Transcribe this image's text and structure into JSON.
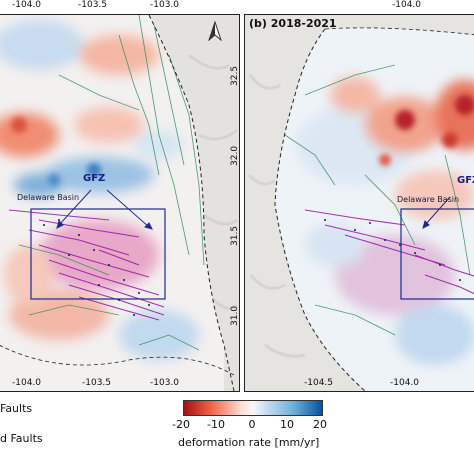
{
  "panel_a": {
    "top_ticks": [
      "-104.0",
      "-103.5",
      "-103.0"
    ],
    "bottom_ticks": [
      "-104.0",
      "-103.5",
      "-103.0"
    ],
    "lat_ticks": [
      "32.5",
      "32.0",
      "31.5",
      "31.0"
    ],
    "gfz_label": "GFZ",
    "basin_label": "Delaware Basin"
  },
  "panel_b": {
    "title": "(b) 2018-2021",
    "top_ticks": [
      "-104.0"
    ],
    "bottom_ticks": [
      "-104.5",
      "-104.0"
    ],
    "gfz_label": "GFZ",
    "basin_label": "Delaware Basin"
  },
  "legend": {
    "items": [
      "Faults",
      "d Faults"
    ]
  },
  "colorbar": {
    "ticks": [
      "-20",
      "-10",
      "0",
      "10",
      "20"
    ],
    "label": "deformation rate [mm/yr]",
    "colors": [
      "#a50f15",
      "#ef6548",
      "#fde0d2",
      "#f7f7f7",
      "#cfe1f2",
      "#6aaed6",
      "#08519c"
    ]
  },
  "colors": {
    "aoi_box": "#1f2a8c",
    "faults": "#2e8b57",
    "induced": "#9b1fa8"
  }
}
